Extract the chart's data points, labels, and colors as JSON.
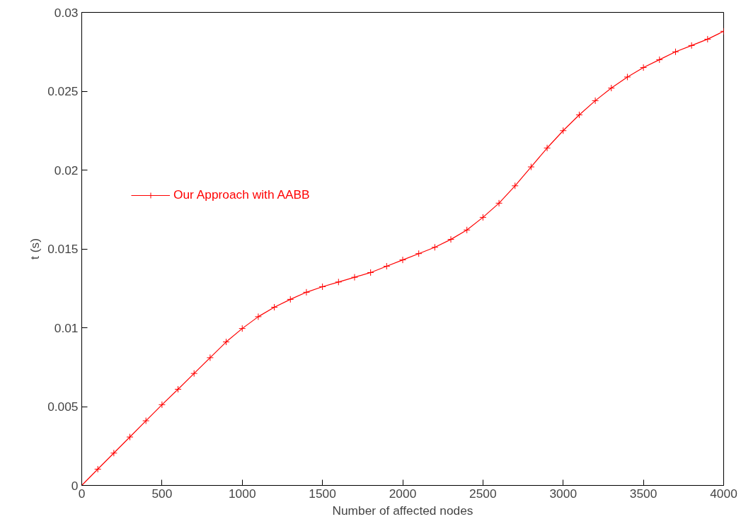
{
  "chart_data": {
    "type": "line",
    "xlabel": "Number of affected nodes",
    "ylabel": "t (s)",
    "x": [
      0,
      100,
      200,
      300,
      400,
      500,
      600,
      700,
      800,
      900,
      1000,
      1100,
      1200,
      1300,
      1400,
      1500,
      1600,
      1700,
      1800,
      1900,
      2000,
      2100,
      2200,
      2300,
      2400,
      2500,
      2600,
      2700,
      2800,
      2900,
      3000,
      3100,
      3200,
      3300,
      3400,
      3500,
      3600,
      3700,
      3800,
      3900,
      4000
    ],
    "series": [
      {
        "name": "Our Approach with AABB",
        "color": "#ff0000",
        "values": [
          0,
          0.00103,
          0.00205,
          0.00307,
          0.0041,
          0.00512,
          0.0061,
          0.0071,
          0.0081,
          0.0091,
          0.00995,
          0.0107,
          0.0113,
          0.0118,
          0.01225,
          0.0126,
          0.0129,
          0.0132,
          0.0135,
          0.0139,
          0.0143,
          0.0147,
          0.0151,
          0.0156,
          0.0162,
          0.017,
          0.0179,
          0.019,
          0.0202,
          0.0214,
          0.0225,
          0.0235,
          0.0244,
          0.0252,
          0.0259,
          0.0265,
          0.027,
          0.0275,
          0.0279,
          0.0283,
          0.0288
        ]
      }
    ],
    "xlim": [
      0,
      4000
    ],
    "xticks": [
      0,
      500,
      1000,
      1500,
      2000,
      2500,
      3000,
      3500,
      4000
    ],
    "ylim": [
      0,
      0.03
    ],
    "yticks": [
      0,
      0.005,
      0.01,
      0.015,
      0.02,
      0.025,
      0.03
    ],
    "grid": false,
    "legend": "left",
    "marker": "cross",
    "line_style": "solid"
  }
}
